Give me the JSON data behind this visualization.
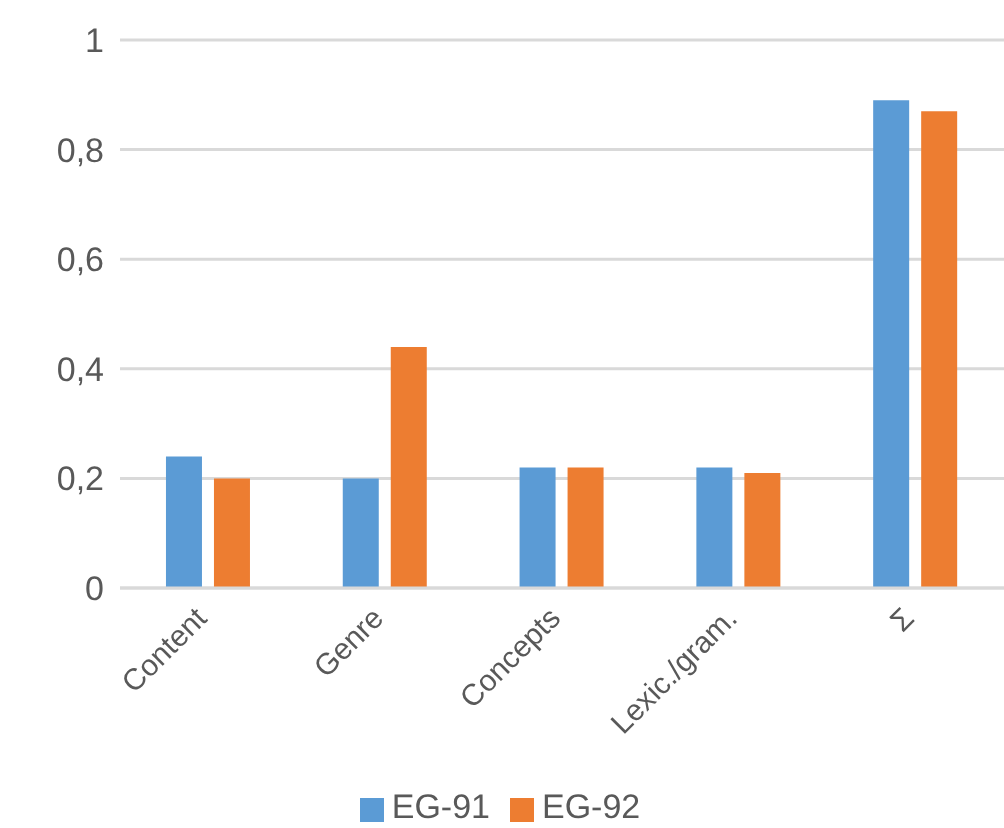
{
  "chart_data": {
    "type": "bar",
    "categories": [
      "Content",
      "Genre",
      "Concepts",
      "Lexic./gram.",
      "Σ"
    ],
    "series": [
      {
        "name": "EG-91",
        "color": "#5b9bd5",
        "values": [
          0.24,
          0.2,
          0.22,
          0.22,
          0.89
        ]
      },
      {
        "name": "EG-92",
        "color": "#ed7d31",
        "values": [
          0.2,
          0.44,
          0.22,
          0.21,
          0.87
        ]
      }
    ],
    "ylim": [
      0,
      1
    ],
    "yticks": [
      0,
      {
        "value": 0.2,
        "label": "0,2"
      },
      {
        "value": 0.4,
        "label": "0,4"
      },
      {
        "value": 0.6,
        "label": "0,6"
      },
      {
        "value": 0.8,
        "label": "0,8"
      },
      1
    ],
    "grid": "y",
    "legend": "bottom"
  }
}
